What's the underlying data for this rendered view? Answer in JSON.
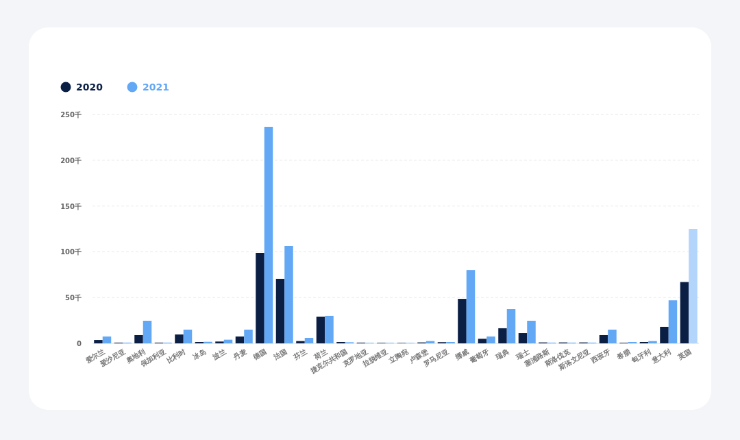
{
  "chart_data": {
    "type": "bar",
    "categories": [
      "爱尔兰",
      "爱沙尼亚",
      "奥地利",
      "保加利亚",
      "比利时",
      "冰岛",
      "波兰",
      "丹麦",
      "德国",
      "法国",
      "芬兰",
      "荷兰",
      "捷克尔共和国",
      "克罗地亚",
      "拉脱维亚",
      "立陶宛",
      "卢森堡",
      "罗马尼亚",
      "挪威",
      "葡萄牙",
      "瑞典",
      "瑞士",
      "塞浦路斯",
      "斯洛伐克",
      "斯洛文尼亚",
      "西班牙",
      "希腊",
      "匈牙利",
      "意大利",
      "英国"
    ],
    "series": [
      {
        "name": "2020",
        "color": "#0b1f45",
        "values": [
          3.7,
          0.8,
          9,
          0.8,
          9.7,
          1.5,
          2,
          7.5,
          98.8,
          70.4,
          2.5,
          29.2,
          1.5,
          0.8,
          0.6,
          0.5,
          1,
          1.3,
          48.6,
          5,
          16.5,
          11.2,
          1,
          1,
          1,
          9,
          0.7,
          1.5,
          18,
          67
        ]
      },
      {
        "name": "2021",
        "color": "#62a8f5",
        "colors": [
          "#62a8f5",
          "#62a8f5",
          "#62a8f5",
          "#62a8f5",
          "#62a8f5",
          "#62a8f5",
          "#62a8f5",
          "#62a8f5",
          "#62a8f5",
          "#62a8f5",
          "#62a8f5",
          "#62a8f5",
          "#62a8f5",
          "#62a8f5",
          "#62a8f5",
          "#62a8f5",
          "#62a8f5",
          "#62a8f5",
          "#62a8f5",
          "#62a8f5",
          "#62a8f5",
          "#62a8f5",
          "#62a8f5",
          "#62a8f5",
          "#62a8f5",
          "#62a8f5",
          "#62a8f5",
          "#62a8f5",
          "#62a8f5",
          "#b3d4fb"
        ],
        "values": [
          7.5,
          0.8,
          24.7,
          0.8,
          15,
          1.7,
          4,
          15,
          236.5,
          106.3,
          6,
          30,
          1.2,
          0.6,
          0.6,
          0.5,
          2.5,
          1.5,
          80,
          7.5,
          37.4,
          24.7,
          0.8,
          0.8,
          0.8,
          15,
          1.5,
          2.5,
          47,
          125
        ]
      }
    ],
    "ylim": [
      0,
      250
    ],
    "yticks": [
      0,
      {
        "value": 50,
        "label": "50千"
      },
      {
        "value": 100,
        "label": "100千"
      },
      {
        "value": 150,
        "label": "150千"
      },
      {
        "value": 200,
        "label": "200千"
      },
      {
        "value": 250,
        "label": "250千"
      }
    ],
    "grid": "y",
    "legend": "top left"
  }
}
